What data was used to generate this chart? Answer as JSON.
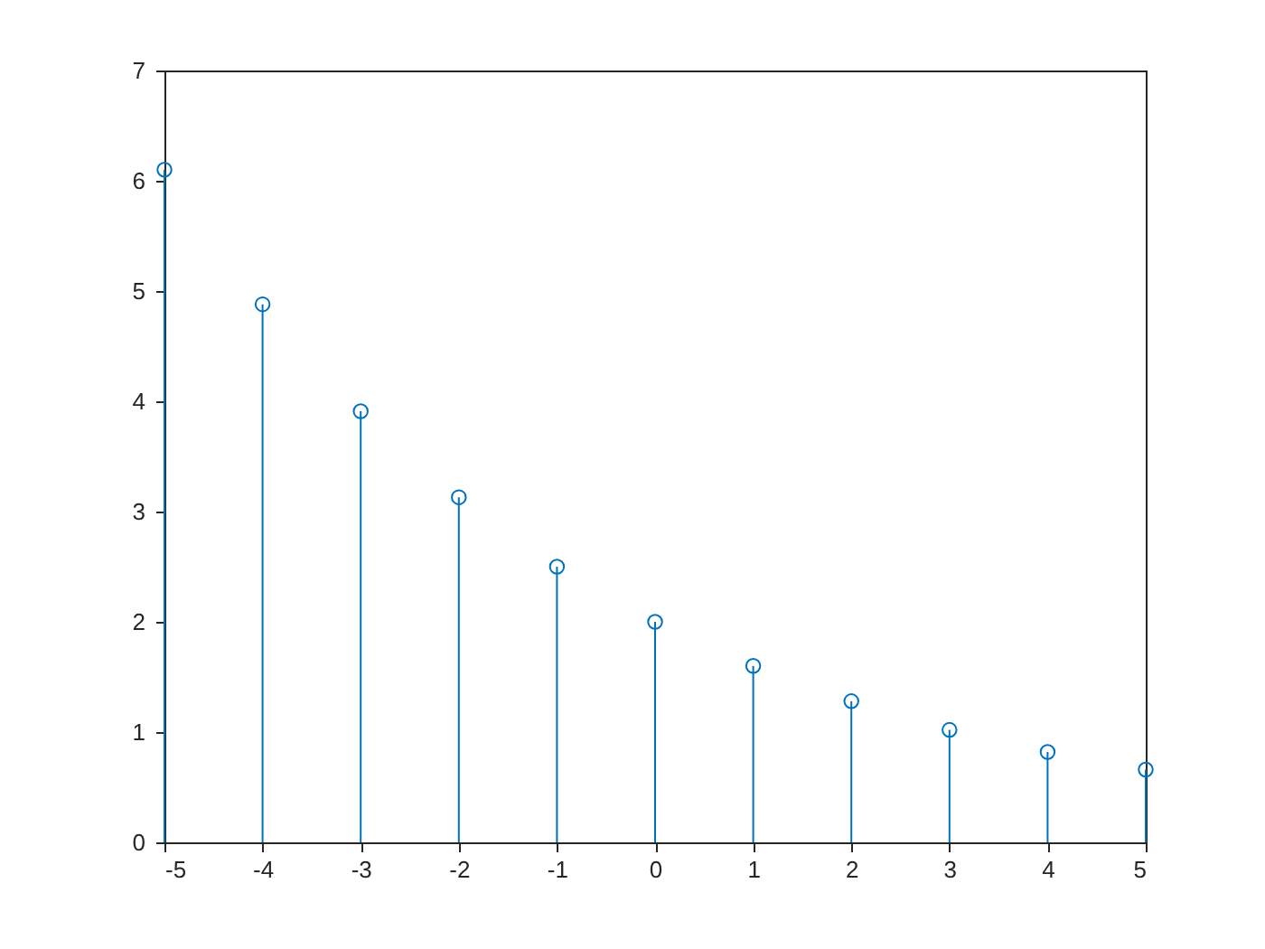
{
  "chart_data": {
    "type": "lollipop",
    "x": [
      -5,
      -4,
      -3,
      -2,
      -1,
      0,
      1,
      2,
      3,
      4,
      5
    ],
    "series": [
      {
        "color": "#0072bd",
        "values": [
          6.1,
          4.88,
          3.91,
          3.13,
          2.5,
          2.0,
          1.6,
          1.28,
          1.02,
          0.82,
          0.66
        ]
      }
    ],
    "xlim": [
      -5,
      5
    ],
    "xticks": [
      -5,
      -4,
      -3,
      -2,
      -1,
      0,
      1,
      2,
      3,
      4,
      5
    ],
    "ylim": [
      0,
      7
    ],
    "yticks": [
      0,
      1,
      2,
      3,
      4,
      5,
      6,
      7
    ],
    "marker": "circle",
    "grid": false
  }
}
